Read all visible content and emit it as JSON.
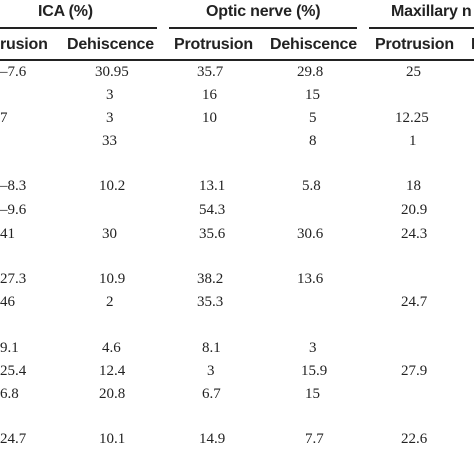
{
  "groups": [
    {
      "label": "ICA (%)"
    },
    {
      "label": "Optic nerve (%)"
    },
    {
      "label": "Maxillary n"
    }
  ],
  "subheaders": [
    "rusion",
    "Dehiscence",
    "Protrusion",
    "Dehiscence",
    "Protrusion",
    "D"
  ],
  "rows": [
    {
      "c0": "–7.6",
      "c1": "30.95",
      "c2": "35.7",
      "c3": "29.8",
      "c4": "25"
    },
    {
      "c0": "",
      "c1": "3",
      "c2": "16",
      "c3": "15",
      "c4": ""
    },
    {
      "c0": "7",
      "c1": "3",
      "c2": "10",
      "c3": "5",
      "c4": "12.25"
    },
    {
      "c0": "",
      "c1": "33",
      "c2": "",
      "c3": "8",
      "c4": "1"
    },
    {
      "c0": "–8.3",
      "c1": "10.2",
      "c2": "13.1",
      "c3": "5.8",
      "c4": "18"
    },
    {
      "c0": "–9.6",
      "c1": "",
      "c2": "54.3",
      "c3": "",
      "c4": "20.9"
    },
    {
      "c0": "41",
      "c1": "30",
      "c2": "35.6",
      "c3": "30.6",
      "c4": "24.3"
    },
    {
      "c0": "27.3",
      "c1": "10.9",
      "c2": "38.2",
      "c3": "13.6",
      "c4": ""
    },
    {
      "c0": "46",
      "c1": "2",
      "c2": "35.3",
      "c3": "",
      "c4": "24.7"
    },
    {
      "c0": "9.1",
      "c1": "4.6",
      "c2": "8.1",
      "c3": "3",
      "c4": ""
    },
    {
      "c0": "25.4",
      "c1": "12.4",
      "c2": "3",
      "c3": "15.9",
      "c4": "27.9"
    },
    {
      "c0": "6.8",
      "c1": "20.8",
      "c2": "6.7",
      "c3": "15",
      "c4": ""
    },
    {
      "c0": "24.7",
      "c1": "10.1",
      "c2": "14.9",
      "c3": "7.7",
      "c4": "22.6"
    }
  ]
}
